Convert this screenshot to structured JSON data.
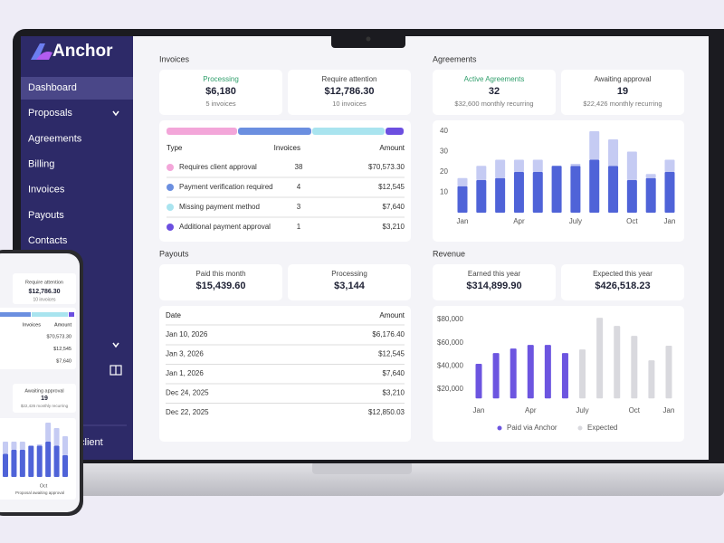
{
  "sidebar": {
    "logo": "Anchor",
    "nav": [
      "Dashboard",
      "Proposals",
      "Agreements",
      "Billing",
      "Invoices",
      "Payouts",
      "Contacts"
    ],
    "active": 0,
    "footer": "client"
  },
  "invoices": {
    "title": "Invoices",
    "stats": [
      {
        "label": "Processing",
        "value": "$6,180",
        "sub": "5 invoices"
      },
      {
        "label": "Require attention",
        "value": "$12,786.30",
        "sub": "10 invoices"
      }
    ],
    "table": {
      "columns": [
        "Type",
        "Invoices",
        "Amount"
      ],
      "rows": [
        [
          "Requires client approval",
          "38",
          "$70,573.30"
        ],
        [
          "Payment verification required",
          "4",
          "$12,545"
        ],
        [
          "Missing payment method",
          "3",
          "$7,640"
        ],
        [
          "Additional payment approval",
          "1",
          "$3,210"
        ]
      ],
      "colors": [
        "#f3a6d9",
        "#6b8fe0",
        "#a9e4ef",
        "#6c4fe0"
      ]
    }
  },
  "agreements": {
    "title": "Agreements",
    "stats": [
      {
        "label": "Active Agreements",
        "value": "32",
        "sub": "$32,600 monthly recurring"
      },
      {
        "label": "Awaiting approval",
        "value": "19",
        "sub": "$22,426 monthly recurring"
      }
    ],
    "chart": {
      "type": "stacked-bar",
      "categories": [
        "Jan",
        null,
        null,
        "Apr",
        null,
        null,
        "July",
        null,
        null,
        "Oct",
        null,
        "Jan"
      ],
      "series": [
        {
          "color": "#4f63d8",
          "values": [
            13,
            16,
            17,
            20,
            20,
            23,
            23,
            26,
            23,
            16,
            17,
            20
          ]
        },
        {
          "color": "#c5cbf3",
          "values": [
            4,
            7,
            9,
            6,
            6,
            0,
            1,
            14,
            13,
            14,
            2,
            6
          ]
        }
      ],
      "ylim": [
        0,
        40
      ],
      "yticks": [
        10,
        20,
        30,
        40
      ]
    }
  },
  "payouts": {
    "title": "Payouts",
    "stats": [
      {
        "label": "Paid this month",
        "value": "$15,439.60"
      },
      {
        "label": "Processing",
        "value": "$3,144"
      }
    ],
    "table": {
      "columns": [
        "Date",
        "Amount"
      ],
      "rows": [
        [
          "Jan 10, 2026",
          "$6,176.40"
        ],
        [
          "Jan 3, 2026",
          "$12,545"
        ],
        [
          "Jan 1, 2026",
          "$7,640"
        ],
        [
          "Dec 24, 2025",
          "$3,210"
        ],
        [
          "Dec 22, 2025",
          "$12,850.03"
        ]
      ]
    }
  },
  "revenue": {
    "title": "Revenue",
    "stats": [
      {
        "label": "Earned this year",
        "value": "$314,899.90"
      },
      {
        "label": "Expected this year",
        "value": "$426,518.23"
      }
    ],
    "chart": {
      "type": "bar",
      "categories": [
        "Jan",
        null,
        null,
        "Apr",
        null,
        null,
        "July",
        null,
        null,
        "Oct",
        null,
        "Jan"
      ],
      "series": [
        {
          "name": "Paid via Anchor",
          "color": "#6c55e0",
          "values": [
            41800,
            51100,
            55000,
            58100,
            58100,
            51100,
            null,
            null,
            null,
            null,
            null,
            null
          ]
        },
        {
          "name": "Expected",
          "color": "#d9d9de",
          "values": [
            null,
            null,
            null,
            null,
            null,
            null,
            54200,
            81500,
            74500,
            65900,
            44900,
            57400
          ]
        }
      ],
      "ylim": [
        12000,
        85000
      ],
      "yticks": [
        {
          "value": 20000,
          "label": "$20,000"
        },
        {
          "value": 40000,
          "label": "$40,000"
        },
        {
          "value": 60000,
          "label": "$60,000"
        },
        {
          "value": 80000,
          "label": "$80,000"
        }
      ]
    }
  },
  "phone": {
    "stat": {
      "label": "Require attention",
      "value": "$12,786.30",
      "sub": "10 invoices"
    },
    "columns": [
      "Invoices",
      "Amount"
    ],
    "amounts": [
      "$70,573.30",
      "$12,545",
      "$7,640"
    ],
    "card": {
      "label": "Awaiting approval",
      "value": "19",
      "sub": "$22,426 monthly recurring"
    },
    "chart": {
      "type": "stacked-bar",
      "series": [
        {
          "color": "#4f63d8",
          "values": [
            17,
            20,
            20,
            23,
            23,
            26,
            23,
            16
          ]
        },
        {
          "color": "#c5cbf3",
          "values": [
            9,
            6,
            6,
            0,
            1,
            14,
            13,
            14
          ]
        }
      ],
      "ylim": [
        0,
        40
      ],
      "label": "Oct"
    },
    "footer": "Proposal awaiting approval"
  }
}
